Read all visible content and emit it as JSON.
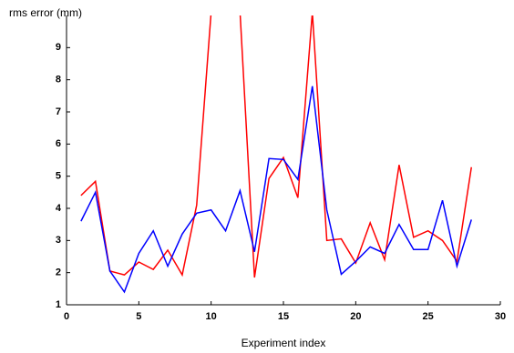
{
  "chart_data": {
    "type": "line",
    "ylabel": "rms error (mm)",
    "xlabel": "Experiment index",
    "x": [
      1,
      2,
      3,
      4,
      5,
      6,
      7,
      8,
      9,
      10,
      11,
      12,
      13,
      14,
      15,
      16,
      17,
      18,
      19,
      20,
      21,
      22,
      23,
      24,
      25,
      26,
      27,
      28
    ],
    "series": [
      {
        "color": "#ff0000",
        "values": [
          4.4,
          4.84,
          2.05,
          1.93,
          2.33,
          2.1,
          2.7,
          1.93,
          4.1,
          10.1,
          12,
          10.1,
          1.85,
          4.93,
          5.58,
          4.33,
          10.1,
          3.0,
          3.05,
          2.3,
          3.55,
          2.4,
          5.35,
          3.1,
          3.3,
          3.0,
          2.35,
          5.28
        ]
      },
      {
        "color": "#0000ff",
        "values": [
          3.6,
          4.5,
          2.05,
          1.4,
          2.6,
          3.3,
          2.2,
          3.2,
          3.85,
          3.95,
          3.3,
          4.55,
          2.65,
          5.55,
          5.52,
          4.9,
          7.8,
          3.95,
          1.95,
          2.35,
          2.8,
          2.6,
          3.5,
          2.72,
          2.72,
          4.25,
          2.2,
          3.65
        ]
      }
    ],
    "xlim": [
      0,
      30
    ],
    "xticks": [
      0,
      5,
      10,
      15,
      20,
      25,
      30
    ],
    "ylim": [
      1,
      10
    ],
    "yticks": [
      1,
      2,
      3,
      4,
      5,
      6,
      7,
      8,
      9
    ]
  }
}
